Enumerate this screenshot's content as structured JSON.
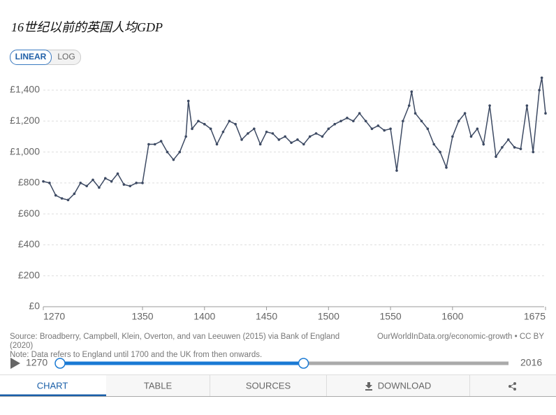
{
  "chart_data": {
    "type": "line",
    "title": "16世纪以前的英国人均GDP",
    "x": [
      1270,
      1275,
      1280,
      1285,
      1290,
      1295,
      1300,
      1305,
      1310,
      1315,
      1320,
      1325,
      1330,
      1335,
      1340,
      1345,
      1350,
      1355,
      1360,
      1365,
      1370,
      1375,
      1380,
      1385,
      1387,
      1390,
      1395,
      1400,
      1405,
      1410,
      1415,
      1420,
      1425,
      1430,
      1435,
      1440,
      1445,
      1450,
      1455,
      1460,
      1465,
      1470,
      1475,
      1480,
      1485,
      1490,
      1495,
      1500,
      1505,
      1510,
      1515,
      1520,
      1525,
      1530,
      1535,
      1540,
      1545,
      1550,
      1555,
      1560,
      1565,
      1567,
      1570,
      1575,
      1580,
      1585,
      1590,
      1595,
      1600,
      1605,
      1610,
      1615,
      1620,
      1625,
      1630,
      1635,
      1640,
      1645,
      1650,
      1655,
      1660,
      1665,
      1670,
      1672,
      1675
    ],
    "values": [
      810,
      800,
      720,
      700,
      690,
      730,
      800,
      780,
      820,
      770,
      830,
      810,
      860,
      790,
      780,
      800,
      800,
      1050,
      1050,
      1070,
      1000,
      950,
      1000,
      1100,
      1330,
      1150,
      1200,
      1180,
      1150,
      1050,
      1130,
      1200,
      1180,
      1080,
      1120,
      1150,
      1050,
      1130,
      1120,
      1080,
      1100,
      1060,
      1080,
      1050,
      1100,
      1120,
      1100,
      1150,
      1180,
      1200,
      1220,
      1200,
      1250,
      1200,
      1150,
      1170,
      1140,
      1150,
      880,
      1200,
      1300,
      1390,
      1250,
      1200,
      1150,
      1050,
      1000,
      900,
      1100,
      1200,
      1250,
      1100,
      1150,
      1050,
      1300,
      970,
      1030,
      1080,
      1030,
      1020,
      1300,
      1000,
      1400,
      1480,
      1250
    ],
    "color": "#3d4a63",
    "xlim": [
      1270,
      1675
    ],
    "xticks": [
      1270,
      1350,
      1400,
      1450,
      1500,
      1550,
      1600,
      1675
    ],
    "ylim": [
      0,
      1400
    ],
    "yticks": [
      {
        "value": 0,
        "label": "£0"
      },
      {
        "value": 200,
        "label": "£200"
      },
      {
        "value": 400,
        "label": "£400"
      },
      {
        "value": 600,
        "label": "£600"
      },
      {
        "value": 800,
        "label": "£800"
      },
      {
        "value": 1000,
        "label": "£1,000"
      },
      {
        "value": 1200,
        "label": "£1,200"
      },
      {
        "value": 1400,
        "label": "£1,400"
      }
    ],
    "grid": true
  },
  "controls": [
    "LINEAR",
    "LOG"
  ],
  "footer": {
    "source": "Source: Broadberry, Campbell, Klein, Overton, and van Leeuwen (2015) via Bank of England",
    "source2": "(2020)",
    "credit": "OurWorldInData.org/economic-growth • CC BY",
    "note": "Note: Data refers to England until 1700 and the UK from then onwards."
  },
  "timeline": {
    "start": 1270,
    "end": 2016,
    "selected": [
      1270,
      1675
    ]
  },
  "tabs": [
    "CHART",
    "TABLE",
    "SOURCES",
    "DOWNLOAD"
  ]
}
